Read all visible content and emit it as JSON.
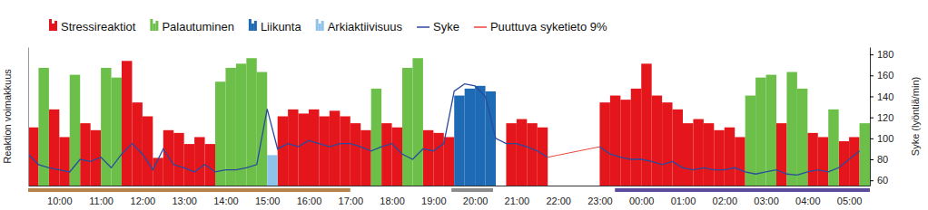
{
  "chart_data": {
    "type": "bar",
    "y_label": "Reaktion voimakkuus",
    "y2_label": "Syke (lyöntiä/min)",
    "legend": "top",
    "x": [
      555,
      570,
      585,
      600,
      615,
      630,
      645,
      660,
      675,
      690,
      705,
      720,
      735,
      750,
      765,
      780,
      795,
      810,
      825,
      840,
      855,
      870,
      885,
      900,
      915,
      930,
      945,
      960,
      975,
      990,
      1005,
      1020,
      1035,
      1050,
      1065,
      1080,
      1095,
      1110,
      1125,
      1140,
      1155,
      1170,
      1185,
      1200,
      1215,
      1230,
      1245,
      1260,
      1275,
      1290,
      1305,
      1320,
      1335,
      1350,
      1365,
      1380,
      1395,
      1410,
      1425,
      1440,
      1455,
      1470,
      1485,
      1500,
      1515,
      1530,
      1545,
      1560,
      1575,
      1590,
      1605,
      1620,
      1635,
      1650,
      1665,
      1680,
      1695,
      1710,
      1725,
      1740,
      1755
    ],
    "xlim": [
      555,
      1770
    ],
    "xticks": [
      {
        "value": 600,
        "label": "10:00"
      },
      {
        "value": 660,
        "label": "11:00"
      },
      {
        "value": 720,
        "label": "12:00"
      },
      {
        "value": 780,
        "label": "13:00"
      },
      {
        "value": 840,
        "label": "14:00"
      },
      {
        "value": 900,
        "label": "15:00"
      },
      {
        "value": 960,
        "label": "16:00"
      },
      {
        "value": 1020,
        "label": "17:00"
      },
      {
        "value": 1080,
        "label": "18:00"
      },
      {
        "value": 1140,
        "label": "19:00"
      },
      {
        "value": 1200,
        "label": "20:00"
      },
      {
        "value": 1260,
        "label": "21:00"
      },
      {
        "value": 1320,
        "label": "22:00"
      },
      {
        "value": 1380,
        "label": "23:00"
      },
      {
        "value": 1440,
        "label": "00:00"
      },
      {
        "value": 1500,
        "label": "01:00"
      },
      {
        "value": 1560,
        "label": "02:00"
      },
      {
        "value": 1620,
        "label": "03:00"
      },
      {
        "value": 1680,
        "label": "04:00"
      },
      {
        "value": 1740,
        "label": "05:00"
      }
    ],
    "ylim": [
      0,
      100
    ],
    "yticks": [],
    "y2lim": [
      55,
      187
    ],
    "y2ticks": [
      60,
      80,
      100,
      120,
      140,
      160,
      180
    ],
    "series": [
      {
        "name": "Stressireaktiot",
        "type": "bar",
        "color": "#e4161c",
        "values": [
          42,
          null,
          55,
          35,
          null,
          45,
          40,
          null,
          null,
          90,
          60,
          50,
          20,
          40,
          38,
          30,
          35,
          30,
          null,
          null,
          null,
          null,
          null,
          null,
          50,
          55,
          52,
          55,
          50,
          54,
          50,
          45,
          40,
          null,
          45,
          42,
          null,
          null,
          40,
          38,
          35,
          null,
          null,
          null,
          null,
          null,
          45,
          48,
          45,
          42,
          null,
          null,
          null,
          null,
          null,
          60,
          65,
          62,
          70,
          88,
          65,
          60,
          55,
          45,
          48,
          45,
          40,
          42,
          35,
          null,
          null,
          null,
          45,
          null,
          null,
          38,
          35,
          null,
          32,
          35,
          null
        ]
      },
      {
        "name": "Palautuminen",
        "type": "bar",
        "color": "#6cc04a",
        "values": [
          null,
          85,
          null,
          null,
          80,
          null,
          null,
          85,
          78,
          null,
          null,
          null,
          null,
          null,
          null,
          null,
          null,
          null,
          75,
          85,
          88,
          92,
          82,
          null,
          null,
          null,
          null,
          null,
          null,
          null,
          null,
          null,
          null,
          70,
          null,
          null,
          85,
          92,
          null,
          null,
          null,
          null,
          null,
          null,
          null,
          null,
          null,
          null,
          null,
          null,
          null,
          null,
          null,
          null,
          null,
          null,
          null,
          null,
          null,
          null,
          null,
          null,
          null,
          null,
          null,
          null,
          null,
          null,
          null,
          65,
          78,
          80,
          null,
          82,
          70,
          null,
          null,
          55,
          null,
          null,
          45
        ]
      },
      {
        "name": "Liikunta",
        "type": "bar",
        "color": "#1e6ab4",
        "values": [
          null,
          null,
          null,
          null,
          null,
          null,
          null,
          null,
          null,
          null,
          null,
          null,
          null,
          null,
          null,
          null,
          null,
          null,
          null,
          null,
          null,
          null,
          null,
          null,
          null,
          null,
          null,
          null,
          null,
          null,
          null,
          null,
          null,
          null,
          null,
          null,
          null,
          null,
          null,
          null,
          null,
          65,
          70,
          72,
          68,
          null,
          null,
          null,
          null,
          null,
          null,
          null,
          null,
          null,
          null,
          null,
          null,
          null,
          null,
          null,
          null,
          null,
          null,
          null,
          null,
          null,
          null,
          null,
          null,
          null,
          null,
          null,
          null,
          null,
          null,
          null,
          null,
          null,
          null,
          null,
          null
        ]
      },
      {
        "name": "Arkiaktiivisuus",
        "type": "bar",
        "color": "#8ec4ea",
        "values": [
          null,
          null,
          null,
          null,
          null,
          null,
          null,
          null,
          null,
          null,
          null,
          null,
          null,
          null,
          null,
          null,
          null,
          null,
          null,
          null,
          null,
          null,
          null,
          22,
          null,
          null,
          null,
          null,
          null,
          null,
          null,
          null,
          null,
          null,
          null,
          null,
          null,
          null,
          null,
          null,
          null,
          null,
          null,
          null,
          null,
          null,
          null,
          null,
          null,
          null,
          null,
          null,
          null,
          null,
          null,
          null,
          null,
          null,
          null,
          null,
          null,
          null,
          null,
          null,
          null,
          null,
          null,
          null,
          null,
          null,
          null,
          null,
          null,
          null,
          null,
          null,
          null,
          null,
          null,
          null,
          null
        ]
      },
      {
        "name": "Syke",
        "type": "line",
        "axis": "y2",
        "color": "#2a4a9e",
        "values": [
          85,
          75,
          72,
          70,
          68,
          80,
          78,
          82,
          72,
          85,
          95,
          85,
          70,
          90,
          75,
          72,
          68,
          75,
          68,
          70,
          70,
          72,
          75,
          128,
          90,
          95,
          92,
          98,
          95,
          92,
          95,
          95,
          92,
          88,
          92,
          95,
          85,
          80,
          90,
          88,
          95,
          145,
          152,
          150,
          140,
          100,
          95,
          95,
          92,
          88,
          82,
          null,
          null,
          null,
          null,
          92,
          85,
          82,
          80,
          80,
          78,
          75,
          78,
          72,
          70,
          72,
          70,
          70,
          72,
          68,
          66,
          68,
          70,
          66,
          65,
          68,
          70,
          68,
          72,
          80,
          88
        ]
      },
      {
        "name": "Puuttuva syketieto 9%",
        "type": "line",
        "axis": "y2",
        "color": "#e8453c",
        "values": [
          null,
          null,
          null,
          null,
          null,
          null,
          null,
          null,
          null,
          null,
          null,
          null,
          null,
          null,
          null,
          null,
          null,
          null,
          null,
          null,
          null,
          null,
          null,
          null,
          null,
          null,
          null,
          null,
          null,
          null,
          null,
          null,
          null,
          null,
          null,
          null,
          null,
          null,
          null,
          null,
          null,
          null,
          null,
          null,
          null,
          null,
          null,
          null,
          null,
          null,
          82,
          84,
          86,
          88,
          90,
          92,
          null,
          null,
          null,
          null,
          null,
          null,
          null,
          null,
          null,
          null,
          null,
          null,
          null,
          null,
          null,
          null,
          null,
          null,
          null,
          null,
          null,
          null,
          null,
          null,
          null
        ]
      }
    ],
    "periods": [
      {
        "start": 555,
        "end": 1020,
        "color": "#b5834a"
      },
      {
        "start": 1166,
        "end": 1226,
        "color": "#8c8c8c"
      },
      {
        "start": 1402,
        "end": 1770,
        "color": "#5c4a9c"
      }
    ]
  }
}
